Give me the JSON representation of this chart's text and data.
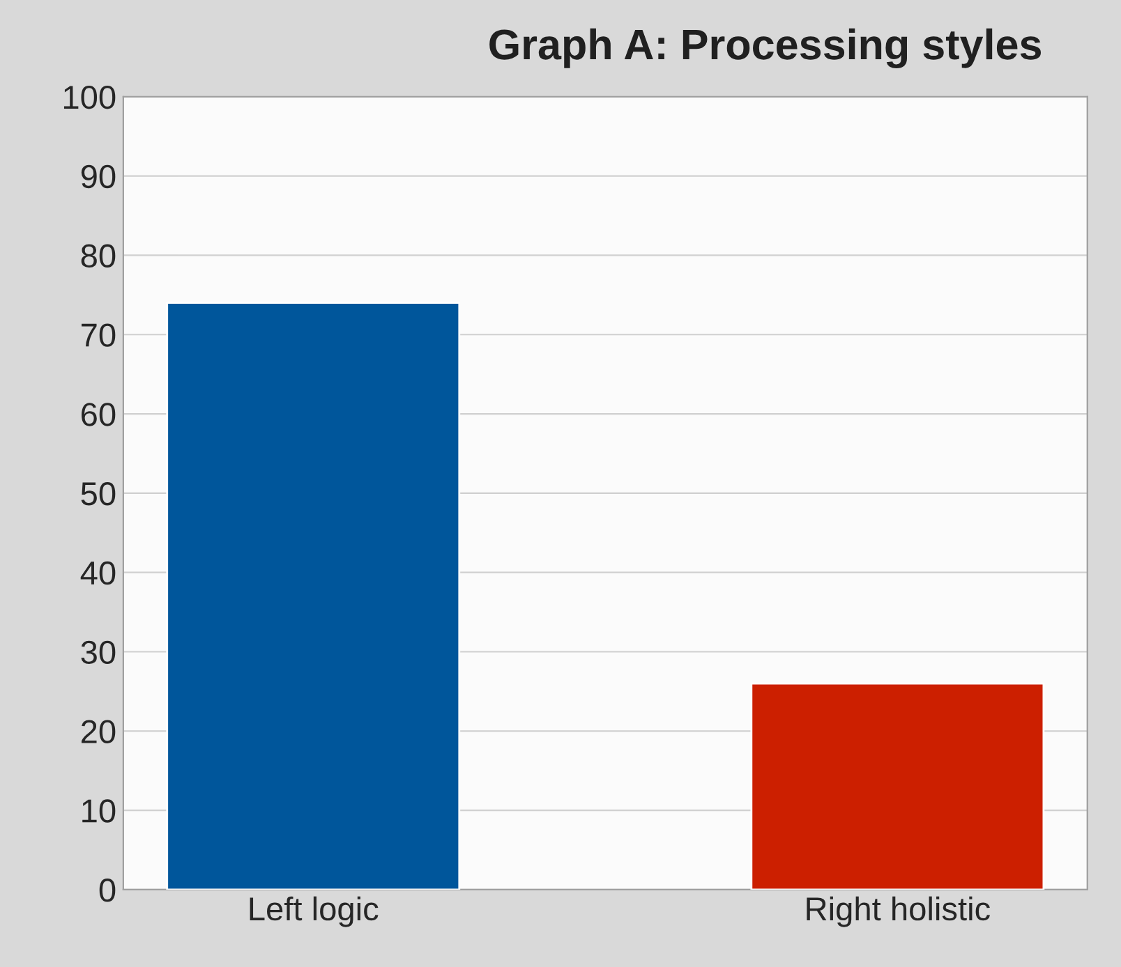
{
  "chart_data": {
    "type": "bar",
    "title": "Graph A: Processing styles",
    "categories": [
      "Left logic",
      "Right holistic"
    ],
    "colors": [
      "#00569b",
      "#cc1f00"
    ],
    "values": [
      74,
      26
    ],
    "ylim": [
      0,
      100
    ],
    "yticks": [
      0,
      10,
      20,
      30,
      40,
      50,
      60,
      70,
      80,
      90,
      100
    ],
    "grid": "y",
    "legend": false
  }
}
